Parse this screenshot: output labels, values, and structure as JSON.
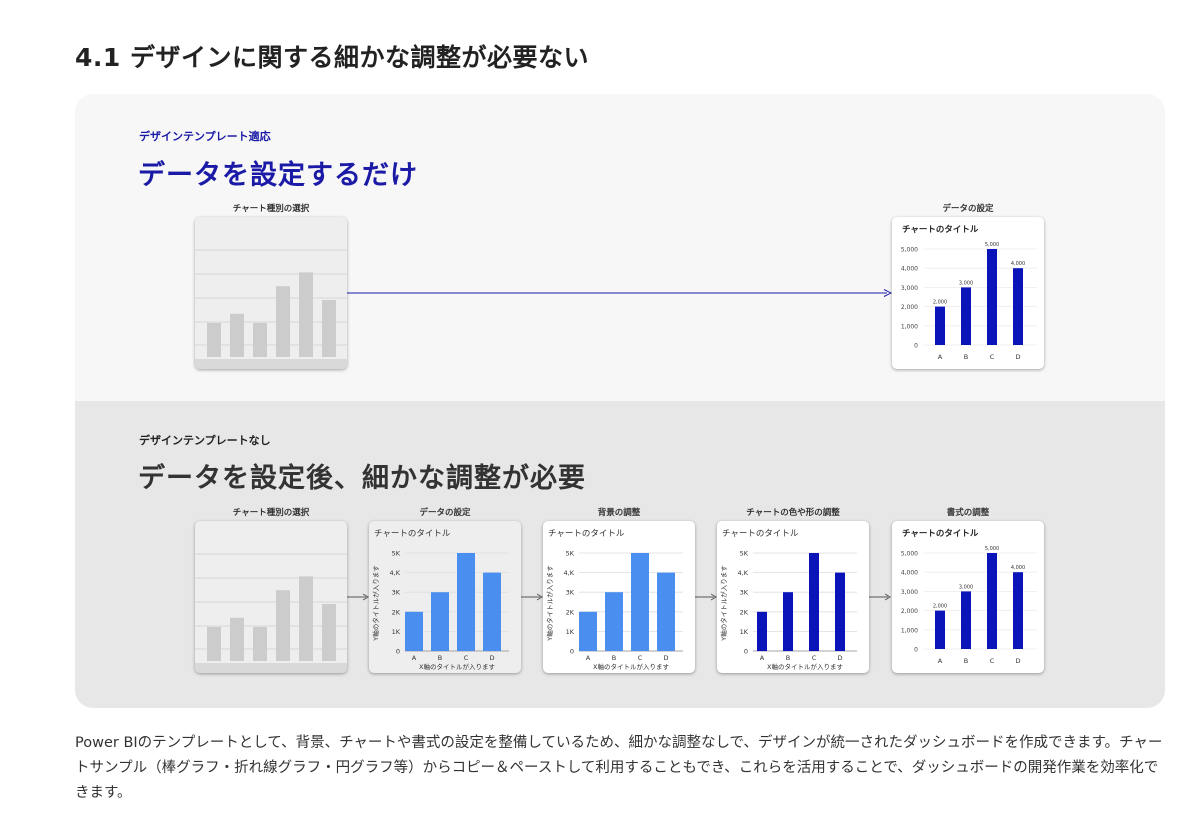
{
  "heading": "4.1 デザインに関する細かな調整が必要ない",
  "with_template": {
    "eyebrow": "デザインテンプレート適応",
    "title": "データを設定するだけ",
    "cards": [
      {
        "label": "チャート種別の選択"
      },
      {
        "label": "データの設定",
        "chart_title": "チャートのタイトル"
      }
    ]
  },
  "without_template": {
    "eyebrow": "デザインテンプレートなし",
    "title": "データを設定後、細かな調整が必要",
    "cards": [
      {
        "label": "チャート種別の選択"
      },
      {
        "label": "データの設定",
        "chart_title": "チャートのタイトル"
      },
      {
        "label": "背景の調整",
        "chart_title": "チャートのタイトル"
      },
      {
        "label": "チャートの色や形の調整",
        "chart_title": "チャートのタイトル"
      },
      {
        "label": "書式の調整",
        "chart_title": "チャートのタイトル"
      }
    ]
  },
  "colors": {
    "accent": "#1a1aa6",
    "dark_bar": "#0a14b8",
    "light_bar": "#4a8ef0",
    "placeholder_bar": "#cccccc"
  },
  "description": "Power BIのテンプレートとして、背景、チャートや書式の設定を整備しているため、細かな調整なしで、デザインが統一されたダッシュボードを作成できます。チャートサンプル（棒グラフ・折れ線グラフ・円グラフ等）からコピー＆ペーストして利用することもでき、これらを活用することで、ダッシュボードの開発作業を効率化できます。",
  "chart_data": [
    {
      "type": "bar",
      "chart": "placeholder",
      "values": [
        37,
        47,
        37,
        77,
        92,
        62
      ]
    },
    {
      "type": "bar",
      "chart": "formatted",
      "categories": [
        "A",
        "B",
        "C",
        "D"
      ],
      "values": [
        2000,
        3000,
        5000,
        4000
      ],
      "data_labels": [
        "2,000",
        "3,000",
        "5,000",
        "4,000"
      ],
      "ticks": [
        "0",
        "1,000",
        "2,000",
        "3,000",
        "4,000",
        "5,000"
      ],
      "ylim": [
        0,
        5000
      ],
      "title": "チャートのタイトル"
    },
    {
      "type": "bar",
      "chart": "unformatted",
      "categories": [
        "A",
        "B",
        "C",
        "D"
      ],
      "values": [
        2000,
        3000,
        5000,
        4000
      ],
      "ticks": [
        "0",
        "1K",
        "2K",
        "3K",
        "4,K",
        "5K"
      ],
      "ylim": [
        0,
        5000
      ],
      "title": "チャートのタイトル",
      "xlabel": "X軸のタイトルが入ります",
      "ylabel": "Y軸のタイトルが入ります"
    }
  ]
}
